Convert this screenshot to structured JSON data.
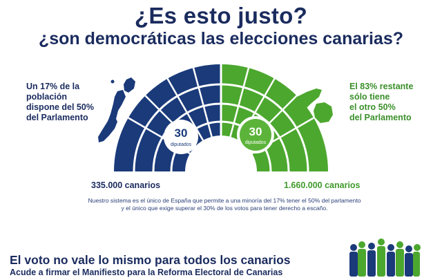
{
  "headline": {
    "title": "¿Es esto justo?",
    "subtitle": "¿son democráticas las elecciones canarias?"
  },
  "left": {
    "text_lines": [
      "Un 17% de la",
      "población",
      "dispone del 50%",
      "del Parlamento"
    ],
    "count": "335.000 canarios",
    "seats_number": "30",
    "seats_label": "diputados",
    "color": "#1a3a7a"
  },
  "right": {
    "text_lines": [
      "El 83% restante",
      "sólo tiene",
      "el otro 50%",
      "del Parlamento"
    ],
    "count": "1.660.000 canarios",
    "seats_number": "30",
    "seats_label": "diputados",
    "color": "#4ca72e"
  },
  "description": {
    "line1": "Nuestro sistema es el único de España que permite a una minoría del 17% tener el 50% del parlamento",
    "line2": "y el único que exige superar el 30% de los votos para tener derecho a escaño."
  },
  "footer": {
    "headline": "El voto no vale lo mismo para todos los canarios",
    "subline": "Acude a firmar el Manifiesto para la Reforma Electoral de Canarias"
  },
  "icons": {
    "left_map": "eastern-islands-map-icon",
    "right_map": "western-islands-map-icon",
    "people": "people-crowd-icon"
  }
}
